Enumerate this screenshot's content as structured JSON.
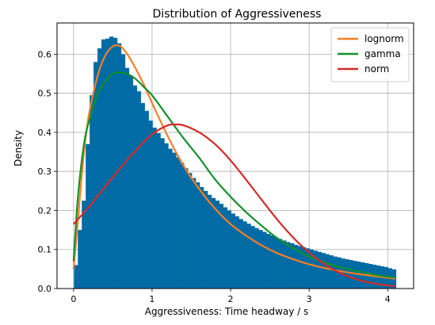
{
  "chart_data": {
    "type": "histogram_with_fits",
    "title": "Distribution of Aggressiveness",
    "xlabel": "Aggressiveness: Time headway / s",
    "ylabel": "Density",
    "xlim": [
      -0.21,
      4.33
    ],
    "ylim": [
      0,
      0.68
    ],
    "xticks": [
      0,
      1,
      2,
      3,
      4
    ],
    "yticks": [
      0.0,
      0.1,
      0.2,
      0.3,
      0.4,
      0.5,
      0.6
    ],
    "grid": true,
    "legend_position": "top-right",
    "histogram": {
      "color": "#006BA4",
      "x": [
        0.03,
        0.08,
        0.13,
        0.18,
        0.23,
        0.28,
        0.33,
        0.38,
        0.43,
        0.48,
        0.53,
        0.58,
        0.63,
        0.68,
        0.73,
        0.78,
        0.83,
        0.88,
        0.93,
        0.98,
        1.03,
        1.08,
        1.13,
        1.18,
        1.23,
        1.28,
        1.33,
        1.38,
        1.43,
        1.48,
        1.53,
        1.58,
        1.63,
        1.68,
        1.73,
        1.78,
        1.83,
        1.88,
        1.93,
        1.98,
        2.03,
        2.08,
        2.13,
        2.18,
        2.23,
        2.28,
        2.33,
        2.38,
        2.43,
        2.48,
        2.53,
        2.58,
        2.63,
        2.68,
        2.73,
        2.78,
        2.83,
        2.88,
        2.93,
        2.98,
        3.03,
        3.08,
        3.13,
        3.18,
        3.23,
        3.28,
        3.33,
        3.38,
        3.43,
        3.48,
        3.53,
        3.58,
        3.63,
        3.68,
        3.73,
        3.78,
        3.83,
        3.88,
        3.93,
        3.98,
        4.03,
        4.08
      ],
      "values": [
        0.06,
        0.15,
        0.225,
        0.37,
        0.495,
        0.58,
        0.615,
        0.638,
        0.64,
        0.645,
        0.642,
        0.628,
        0.6,
        0.565,
        0.545,
        0.52,
        0.505,
        0.475,
        0.455,
        0.43,
        0.412,
        0.398,
        0.385,
        0.372,
        0.358,
        0.348,
        0.336,
        0.322,
        0.308,
        0.296,
        0.283,
        0.272,
        0.26,
        0.25,
        0.24,
        0.232,
        0.225,
        0.217,
        0.208,
        0.2,
        0.192,
        0.185,
        0.178,
        0.172,
        0.166,
        0.16,
        0.155,
        0.15,
        0.145,
        0.14,
        0.136,
        0.131,
        0.127,
        0.123,
        0.119,
        0.116,
        0.112,
        0.109,
        0.106,
        0.103,
        0.1,
        0.097,
        0.094,
        0.091,
        0.088,
        0.085,
        0.082,
        0.08,
        0.077,
        0.075,
        0.073,
        0.071,
        0.069,
        0.067,
        0.065,
        0.063,
        0.061,
        0.059,
        0.057,
        0.055,
        0.052,
        0.049
      ]
    },
    "series": [
      {
        "name": "lognorm",
        "color": "#F57F26",
        "x": [
          0.0,
          0.05,
          0.1,
          0.15,
          0.2,
          0.3,
          0.4,
          0.5,
          0.6,
          0.7,
          0.8,
          0.9,
          1.0,
          1.2,
          1.4,
          1.6,
          1.8,
          2.0,
          2.2,
          2.4,
          2.6,
          2.8,
          3.0,
          3.3,
          3.6,
          3.9,
          4.1
        ],
        "values": [
          0.05,
          0.16,
          0.28,
          0.38,
          0.45,
          0.54,
          0.595,
          0.62,
          0.62,
          0.595,
          0.56,
          0.52,
          0.475,
          0.39,
          0.315,
          0.255,
          0.205,
          0.165,
          0.135,
          0.11,
          0.09,
          0.075,
          0.062,
          0.048,
          0.038,
          0.03,
          0.025
        ]
      },
      {
        "name": "gamma",
        "color": "#13902C",
        "x": [
          0.0,
          0.05,
          0.1,
          0.15,
          0.2,
          0.3,
          0.4,
          0.5,
          0.6,
          0.7,
          0.8,
          0.9,
          1.0,
          1.2,
          1.4,
          1.6,
          1.8,
          2.0,
          2.2,
          2.4,
          2.6,
          2.8,
          3.0,
          3.3,
          3.6,
          3.9,
          4.1
        ],
        "values": [
          0.07,
          0.22,
          0.32,
          0.39,
          0.43,
          0.495,
          0.53,
          0.55,
          0.553,
          0.548,
          0.535,
          0.515,
          0.495,
          0.44,
          0.385,
          0.335,
          0.28,
          0.235,
          0.195,
          0.16,
          0.128,
          0.103,
          0.082,
          0.06,
          0.045,
          0.033,
          0.028
        ]
      },
      {
        "name": "norm",
        "color": "#D52B27",
        "x": [
          0.0,
          0.2,
          0.4,
          0.6,
          0.8,
          1.0,
          1.2,
          1.3,
          1.4,
          1.6,
          1.8,
          2.0,
          2.2,
          2.4,
          2.6,
          2.8,
          3.0,
          3.2,
          3.4,
          3.6,
          3.8,
          4.0,
          4.1
        ],
        "values": [
          0.165,
          0.21,
          0.26,
          0.31,
          0.355,
          0.395,
          0.418,
          0.42,
          0.418,
          0.4,
          0.37,
          0.328,
          0.278,
          0.226,
          0.175,
          0.13,
          0.092,
          0.062,
          0.039,
          0.024,
          0.014,
          0.008,
          0.006
        ]
      }
    ]
  }
}
